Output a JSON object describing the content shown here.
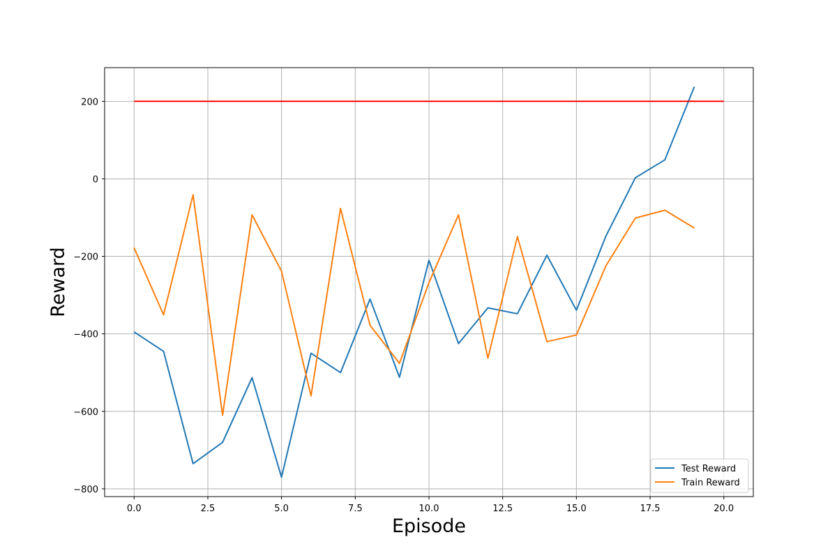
{
  "chart_data": {
    "type": "line",
    "title": "",
    "xlabel": "Episode",
    "ylabel": "Reward",
    "xlim": [
      -1,
      21
    ],
    "ylim": [
      -820,
      287
    ],
    "x_ticks": [
      0.0,
      2.5,
      5.0,
      7.5,
      10.0,
      12.5,
      15.0,
      17.5,
      20.0
    ],
    "x_tick_labels": [
      "0.0",
      "2.5",
      "5.0",
      "7.5",
      "10.0",
      "12.5",
      "15.0",
      "17.5",
      "20.0"
    ],
    "y_ticks": [
      -800,
      -600,
      -400,
      -200,
      0,
      200
    ],
    "y_tick_labels": [
      "−800",
      "−600",
      "−400",
      "−200",
      "0",
      "200"
    ],
    "grid": true,
    "legend_position": "bottom-right",
    "series": [
      {
        "name": "Test Reward",
        "color": "#1f77b4",
        "x": [
          0,
          1,
          2,
          3,
          4,
          5,
          6,
          7,
          8,
          9,
          10,
          11,
          12,
          13,
          14,
          15,
          16,
          17,
          18,
          19
        ],
        "values": [
          -395,
          -445,
          -735,
          -680,
          -513,
          -770,
          -450,
          -500,
          -310,
          -512,
          -210,
          -425,
          -333,
          -348,
          -197,
          -339,
          -148,
          3,
          49,
          238
        ]
      },
      {
        "name": "Train Reward",
        "color": "#ff7f0e",
        "x": [
          0,
          1,
          2,
          3,
          4,
          5,
          6,
          7,
          8,
          9,
          10,
          11,
          12,
          13,
          14,
          15,
          16,
          17,
          18,
          19
        ],
        "values": [
          -178,
          -351,
          -41,
          -610,
          -93,
          -238,
          -560,
          -76,
          -378,
          -476,
          -268,
          -93,
          -463,
          -149,
          -420,
          -403,
          -225,
          -101,
          -81,
          -127
        ]
      }
    ],
    "reference_line": {
      "color": "#ff0000",
      "x": [
        0,
        20
      ],
      "values": [
        200,
        200
      ]
    }
  }
}
